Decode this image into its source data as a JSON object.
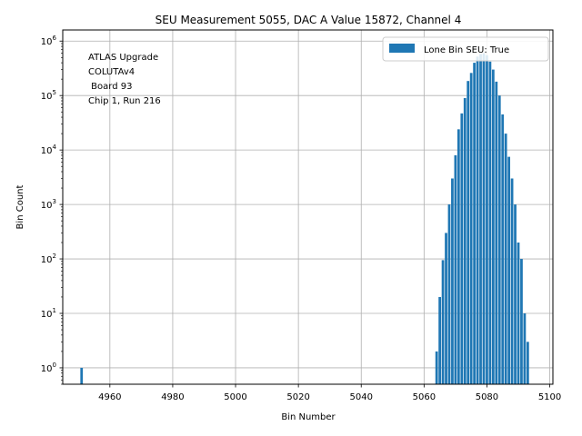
{
  "chart_data": {
    "type": "bar",
    "title": "SEU Measurement 5055, DAC A Value 15872, Channel 4",
    "xlabel": "Bin Number",
    "ylabel": "Bin Count",
    "yscale": "log",
    "xlim": [
      4945,
      5101
    ],
    "ylim": [
      0.5,
      1600000
    ],
    "xticks": [
      4960,
      4980,
      5000,
      5020,
      5040,
      5060,
      5080,
      5100
    ],
    "yticks": [
      {
        "value": 1,
        "base": "10",
        "exp": "0"
      },
      {
        "value": 10,
        "base": "10",
        "exp": "1"
      },
      {
        "value": 100,
        "base": "10",
        "exp": "2"
      },
      {
        "value": 1000,
        "base": "10",
        "exp": "3"
      },
      {
        "value": 10000,
        "base": "10",
        "exp": "4"
      },
      {
        "value": 100000,
        "base": "10",
        "exp": "5"
      },
      {
        "value": 1000000,
        "base": "10",
        "exp": "6"
      }
    ],
    "grid": true,
    "bar_color": "#1f77b4",
    "series": [
      {
        "name": "Lone Bin SEU: True",
        "x": [
          4951,
          5064,
          5065,
          5066,
          5067,
          5068,
          5069,
          5070,
          5071,
          5072,
          5073,
          5074,
          5075,
          5076,
          5077,
          5078,
          5079,
          5080,
          5081,
          5082,
          5083,
          5084,
          5085,
          5086,
          5087,
          5088,
          5089,
          5090,
          5091,
          5092,
          5093
        ],
        "values": [
          1,
          2,
          20,
          95,
          300,
          1000,
          3000,
          8000,
          24000,
          47000,
          90000,
          185000,
          260000,
          400000,
          520000,
          580000,
          600000,
          550000,
          420000,
          300000,
          180000,
          100000,
          45000,
          20000,
          7500,
          3000,
          1000,
          200,
          100,
          10,
          3
        ]
      }
    ],
    "legend": {
      "position": "top-right",
      "label": "Lone Bin SEU: True"
    },
    "annotations": [
      "ATLAS Upgrade",
      "COLUTAv4",
      " Board 93",
      "Chip 1, Run 216"
    ]
  }
}
